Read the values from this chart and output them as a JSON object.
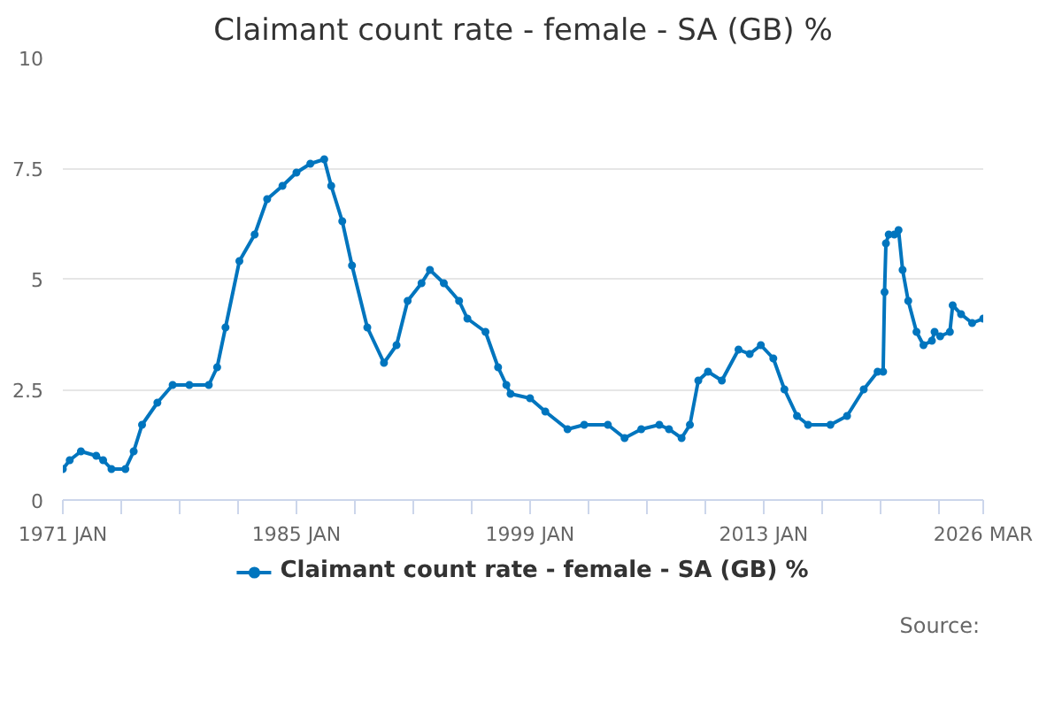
{
  "chart_data": {
    "type": "line",
    "title": "Claimant count rate - female - SA (GB) %",
    "x": [
      "1971-01",
      "1971-06",
      "1972-02",
      "1973-01",
      "1973-06",
      "1973-12",
      "1974-10",
      "1975-04",
      "1975-10",
      "1976-09",
      "1977-08",
      "1978-08",
      "1979-10",
      "1980-04",
      "1980-10",
      "1981-08",
      "1982-07",
      "1983-04",
      "1984-03",
      "1985-01",
      "1985-11",
      "1986-09",
      "1987-02",
      "1987-10",
      "1988-05",
      "1989-04",
      "1990-04",
      "1991-01",
      "1991-09",
      "1992-07",
      "1993-01",
      "1993-11",
      "1994-10",
      "1995-04",
      "1996-05",
      "1997-02",
      "1997-08",
      "1997-11",
      "1999-01",
      "1999-12",
      "2001-04",
      "2002-04",
      "2003-09",
      "2004-09",
      "2005-09",
      "2006-10",
      "2007-05",
      "2008-02",
      "2008-08",
      "2009-02",
      "2009-09",
      "2010-07",
      "2011-07",
      "2012-03",
      "2012-11",
      "2013-08",
      "2014-04",
      "2015-01",
      "2015-09",
      "2017-01",
      "2018-01",
      "2019-01",
      "2019-11",
      "2020-03",
      "2020-04",
      "2020-05",
      "2020-07",
      "2020-11",
      "2021-02",
      "2021-05",
      "2021-09",
      "2022-03",
      "2022-08",
      "2023-02",
      "2023-04",
      "2023-08",
      "2024-03",
      "2024-05",
      "2024-11",
      "2025-07",
      "2026-03"
    ],
    "series": [
      {
        "name": "Claimant count rate - female - SA (GB) %",
        "color": "#0075be",
        "values": [
          0.7,
          0.9,
          1.1,
          1.0,
          0.9,
          0.7,
          0.7,
          1.1,
          1.7,
          2.2,
          2.6,
          2.6,
          2.6,
          3.0,
          3.9,
          5.4,
          6.0,
          6.8,
          7.1,
          7.4,
          7.6,
          7.7,
          7.1,
          6.3,
          5.3,
          3.9,
          3.1,
          3.5,
          4.5,
          4.9,
          5.2,
          4.9,
          4.5,
          4.1,
          3.8,
          3.0,
          2.6,
          2.4,
          2.3,
          2.0,
          1.6,
          1.7,
          1.7,
          1.4,
          1.6,
          1.7,
          1.6,
          1.4,
          1.7,
          2.7,
          2.9,
          2.7,
          3.4,
          3.3,
          3.5,
          3.2,
          2.5,
          1.9,
          1.7,
          1.7,
          1.9,
          2.5,
          2.9,
          2.9,
          4.7,
          5.8,
          6.0,
          6.0,
          6.1,
          5.2,
          4.5,
          3.8,
          3.5,
          3.6,
          3.8,
          3.7,
          3.8,
          4.4,
          4.2,
          4.0,
          4.1
        ]
      }
    ],
    "xlim": [
      "1971-01",
      "2026-03"
    ],
    "xticks": [
      {
        "value": "1971-01",
        "label": "1971 JAN"
      },
      {
        "value": "1974-07",
        "label": null
      },
      {
        "value": "1978-01",
        "label": null
      },
      {
        "value": "1981-07",
        "label": null
      },
      {
        "value": "1985-01",
        "label": "1985 JAN"
      },
      {
        "value": "1988-07",
        "label": null
      },
      {
        "value": "1992-01",
        "label": null
      },
      {
        "value": "1995-07",
        "label": null
      },
      {
        "value": "1999-01",
        "label": "1999 JAN"
      },
      {
        "value": "2002-07",
        "label": null
      },
      {
        "value": "2006-01",
        "label": null
      },
      {
        "value": "2009-07",
        "label": null
      },
      {
        "value": "2013-01",
        "label": "2013 JAN"
      },
      {
        "value": "2016-07",
        "label": null
      },
      {
        "value": "2020-01",
        "label": null
      },
      {
        "value": "2023-07",
        "label": null
      },
      {
        "value": "2026-03",
        "label": "2026 MAR"
      }
    ],
    "ylim": [
      0,
      10
    ],
    "yticks": [
      0,
      2.5,
      5,
      7.5,
      10
    ],
    "grid": "y",
    "legend": "bottom",
    "marker": "circle",
    "line_style": "solid",
    "annotations": [
      "Source:"
    ]
  }
}
